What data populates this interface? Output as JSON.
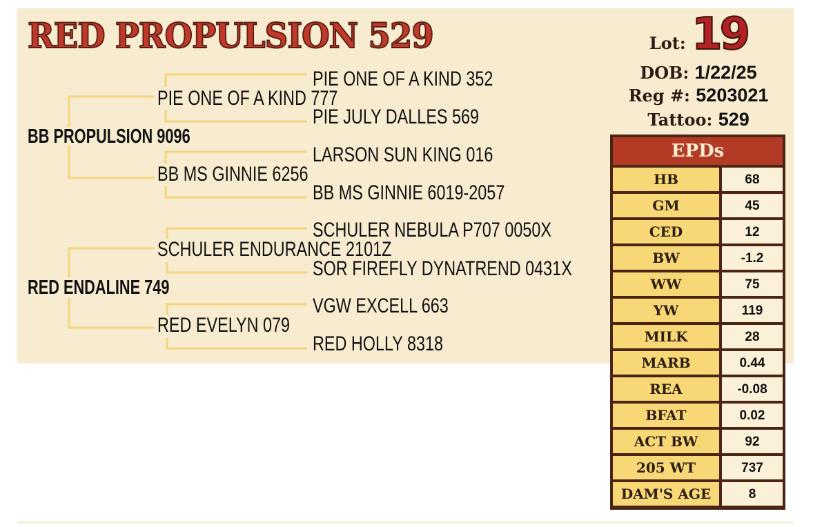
{
  "title": "RED PROPULSION 529",
  "info": {
    "lot_label": "Lot:",
    "lot": "19",
    "dob_label": "DOB:",
    "dob": "1/22/25",
    "reg_label": "Reg #:",
    "reg": "5203021",
    "tattoo_label": "Tattoo:",
    "tattoo": "529"
  },
  "pedigree": {
    "sire": "BB PROPULSION 9096",
    "sire_sire": "PIE ONE OF A KIND 777",
    "sire_sire_sire": "PIE ONE OF A KIND 352",
    "sire_sire_dam": "PIE JULY DALLES 569",
    "sire_dam": "BB MS GINNIE 6256",
    "sire_dam_sire": "LARSON SUN KING 016",
    "sire_dam_dam": "BB MS GINNIE 6019-2057",
    "dam": "RED ENDALINE 749",
    "dam_sire": "SCHULER ENDURANCE 2101Z",
    "dam_sire_sire": "SCHULER NEBULA P707 0050X",
    "dam_sire_dam": "SOR FIREFLY DYNATREND 0431X",
    "dam_dam": "RED EVELYN 079",
    "dam_dam_sire": "VGW EXCELL 663",
    "dam_dam_dam": "RED HOLLY 8318"
  },
  "epds": {
    "header": "EPDs",
    "rows": [
      {
        "label": "HB",
        "value": "68"
      },
      {
        "label": "GM",
        "value": "45"
      },
      {
        "label": "CED",
        "value": "12"
      },
      {
        "label": "BW",
        "value": "-1.2"
      },
      {
        "label": "WW",
        "value": "75"
      },
      {
        "label": "YW",
        "value": "119"
      },
      {
        "label": "MILK",
        "value": "28"
      },
      {
        "label": "MARB",
        "value": "0.44"
      },
      {
        "label": "REA",
        "value": "-0.08"
      },
      {
        "label": "BFAT",
        "value": "0.02"
      },
      {
        "label": "ACT BW",
        "value": "92"
      },
      {
        "label": "205 WT",
        "value": "737"
      },
      {
        "label": "DAM'S AGE",
        "value": "8"
      }
    ]
  },
  "colors": {
    "background": "#f8ecd0",
    "title": "#c0392b",
    "line": "#f3d57a",
    "epd_header": "#b33a25",
    "epd_label": "#f8d776",
    "border": "#4a2515"
  }
}
